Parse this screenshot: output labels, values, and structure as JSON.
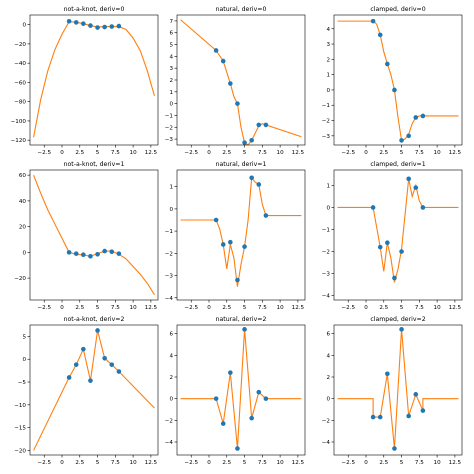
{
  "chart_data": [
    {
      "type": "line",
      "title": "not-a-knot, deriv=0",
      "xlabel": "",
      "ylabel": "",
      "xlim": [
        -4.5,
        13.5
      ],
      "ylim": [
        -125,
        10
      ],
      "xticks": [
        -2.5,
        0,
        2.5,
        5,
        7.5,
        10,
        12.5
      ],
      "yticks": [
        -120,
        -100,
        -80,
        -60,
        -40,
        -20,
        0
      ],
      "grid": false,
      "curve": {
        "x": [
          -4,
          -3,
          -2,
          -1,
          0,
          1,
          2,
          3,
          4,
          5,
          6,
          7,
          8,
          9,
          10,
          11,
          12,
          13
        ],
        "y": [
          -117,
          -78,
          -48,
          -26,
          -10,
          3,
          2.5,
          1,
          -1,
          -2.5,
          -2,
          -2,
          -2,
          -5,
          -14,
          -27,
          -48,
          -74
        ]
      },
      "points": {
        "x": [
          1,
          2,
          3,
          4,
          5,
          6,
          7,
          8
        ],
        "y": [
          3.5,
          2.3,
          1,
          -1,
          -3,
          -2.5,
          -2,
          -1.5
        ]
      },
      "colors": {
        "curve": "#ff7f0e",
        "points": "#1f77b4"
      }
    },
    {
      "type": "line",
      "title": "natural, deriv=0",
      "xlabel": "",
      "ylabel": "",
      "xlim": [
        -4.5,
        13.5
      ],
      "ylim": [
        -3.5,
        7.5
      ],
      "xticks": [
        -2.5,
        0,
        2.5,
        5,
        7.5,
        10,
        12.5
      ],
      "yticks": [
        -3,
        -2,
        -1,
        0,
        1,
        2,
        3,
        4,
        5,
        6,
        7
      ],
      "grid": false,
      "curve": {
        "x": [
          -4,
          1,
          2,
          3,
          3.5,
          4,
          4.5,
          5,
          5.5,
          6,
          6.5,
          7,
          7.5,
          8,
          13
        ],
        "y": [
          7.1,
          4.5,
          3.6,
          1.7,
          0.6,
          0,
          -2.0,
          -3.3,
          -3.5,
          -3.1,
          -2.5,
          -1.9,
          -1.7,
          -1.8,
          -2.8
        ]
      },
      "points": {
        "x": [
          1,
          2,
          3,
          4,
          5,
          6,
          7,
          8
        ],
        "y": [
          4.5,
          3.6,
          1.7,
          0,
          -3.3,
          -3.1,
          -1.8,
          -1.8
        ]
      },
      "colors": {
        "curve": "#ff7f0e",
        "points": "#1f77b4"
      }
    },
    {
      "type": "line",
      "title": "clamped, deriv=0",
      "xlabel": "",
      "ylabel": "",
      "xlim": [
        -4.5,
        13.5
      ],
      "ylim": [
        -3.6,
        4.9
      ],
      "xticks": [
        -2.5,
        0,
        2.5,
        5,
        7.5,
        10,
        12.5
      ],
      "yticks": [
        -3,
        -2,
        -1,
        0,
        1,
        2,
        3,
        4
      ],
      "grid": false,
      "curve": {
        "x": [
          -4,
          1,
          1.5,
          2,
          2.5,
          3,
          3.5,
          4,
          4.5,
          5,
          5.5,
          6,
          6.5,
          7,
          7.5,
          8,
          13
        ],
        "y": [
          4.5,
          4.5,
          4.3,
          3.6,
          2.5,
          1.7,
          1.0,
          0,
          -1.8,
          -3.3,
          -3.2,
          -2.9,
          -2.2,
          -1.8,
          -1.7,
          -1.7,
          -1.7
        ]
      },
      "points": {
        "x": [
          1,
          2,
          3,
          4,
          5,
          6,
          7,
          8
        ],
        "y": [
          4.5,
          3.6,
          1.7,
          0,
          -3.3,
          -3.0,
          -1.8,
          -1.7
        ]
      },
      "colors": {
        "curve": "#ff7f0e",
        "points": "#1f77b4"
      }
    },
    {
      "type": "line",
      "title": "not-a-knot, deriv=1",
      "xlabel": "",
      "ylabel": "",
      "xlim": [
        -4.5,
        13.5
      ],
      "ylim": [
        -37,
        64
      ],
      "xticks": [
        -2.5,
        0,
        2.5,
        5,
        7.5,
        10,
        12.5
      ],
      "yticks": [
        -20,
        0,
        20,
        40,
        60
      ],
      "grid": false,
      "curve": {
        "x": [
          -4,
          -3,
          -2,
          -1,
          0,
          1,
          2,
          3,
          4,
          5,
          6,
          7,
          8,
          9,
          10,
          11,
          12,
          13
        ],
        "y": [
          60,
          46,
          33,
          22,
          11,
          0,
          -1.5,
          -2,
          -3,
          -1,
          1,
          1,
          -1.5,
          -5,
          -11,
          -17,
          -24,
          -33
        ]
      },
      "points": {
        "x": [
          1,
          2,
          3,
          4,
          5,
          6,
          7,
          8
        ],
        "y": [
          0,
          -1,
          -1.8,
          -3,
          -1.5,
          1,
          0.5,
          -1
        ]
      },
      "colors": {
        "curve": "#ff7f0e",
        "points": "#1f77b4"
      }
    },
    {
      "type": "line",
      "title": "natural, deriv=1",
      "xlabel": "",
      "ylabel": "",
      "xlim": [
        -4.5,
        13.5
      ],
      "ylim": [
        -4.1,
        1.75
      ],
      "xticks": [
        -2.5,
        0,
        2.5,
        5,
        7.5,
        10,
        12.5
      ],
      "yticks": [
        -4,
        -3,
        -2,
        -1,
        0,
        1
      ],
      "grid": false,
      "curve": {
        "x": [
          -4,
          1,
          1.5,
          2,
          2.5,
          3,
          3.5,
          4,
          4.5,
          5,
          5.5,
          6,
          6.5,
          7,
          7.5,
          8,
          13
        ],
        "y": [
          -0.5,
          -0.5,
          -0.9,
          -1.6,
          -2.7,
          -1.6,
          -2.2,
          -3.5,
          -2.5,
          -1.7,
          -0.5,
          1.4,
          1.2,
          1.1,
          0.2,
          -0.3,
          -0.3
        ]
      },
      "points": {
        "x": [
          1,
          2,
          3,
          4,
          5,
          6,
          7,
          8
        ],
        "y": [
          -0.5,
          -1.6,
          -1.5,
          -3.2,
          -1.7,
          1.4,
          1.1,
          -0.3
        ]
      },
      "colors": {
        "curve": "#ff7f0e",
        "points": "#1f77b4"
      }
    },
    {
      "type": "line",
      "title": "clamped, deriv=1",
      "xlabel": "",
      "ylabel": "",
      "xlim": [
        -4.5,
        13.5
      ],
      "ylim": [
        -4.2,
        1.7
      ],
      "xticks": [
        -2.5,
        0,
        2.5,
        5,
        7.5,
        10,
        12.5
      ],
      "yticks": [
        -4,
        -3,
        -2,
        -1,
        0,
        1
      ],
      "grid": false,
      "curve": {
        "x": [
          -4,
          1,
          1.5,
          2,
          2.5,
          3,
          3.5,
          4,
          4.5,
          5,
          5.5,
          6,
          6.5,
          7,
          7.5,
          8,
          13
        ],
        "y": [
          0,
          0,
          -0.9,
          -1.8,
          -2.9,
          -1.6,
          -2.3,
          -3.4,
          -2.8,
          -1.9,
          -0.3,
          1.3,
          0.5,
          1.0,
          0.3,
          0,
          0
        ]
      },
      "points": {
        "x": [
          1,
          2,
          3,
          4,
          5,
          6,
          7,
          8
        ],
        "y": [
          0,
          -1.8,
          -1.6,
          -3.2,
          -2.0,
          1.3,
          0.9,
          0
        ]
      },
      "colors": {
        "curve": "#ff7f0e",
        "points": "#1f77b4"
      }
    },
    {
      "type": "line",
      "title": "not-a-knot, deriv=2",
      "xlabel": "",
      "ylabel": "",
      "xlim": [
        -4.5,
        13.5
      ],
      "ylim": [
        -21,
        7.5
      ],
      "xticks": [
        -2.5,
        0,
        2.5,
        5,
        7.5,
        10,
        12.5
      ],
      "yticks": [
        -20,
        -15,
        -10,
        -5,
        0,
        5
      ],
      "grid": false,
      "curve": {
        "x": [
          -4,
          1,
          2,
          3,
          4,
          5,
          6,
          7,
          8,
          13
        ],
        "y": [
          -20,
          -4.0,
          -1.2,
          2.2,
          -4.7,
          6.3,
          0.2,
          -1.2,
          -2.7,
          -10.7
        ]
      },
      "points": {
        "x": [
          1,
          2,
          3,
          4,
          5,
          6,
          7,
          8
        ],
        "y": [
          -4.0,
          -1.2,
          2.2,
          -4.7,
          6.3,
          0.2,
          -1.2,
          -2.7
        ]
      },
      "colors": {
        "curve": "#ff7f0e",
        "points": "#1f77b4"
      }
    },
    {
      "type": "line",
      "title": "natural, deriv=2",
      "xlabel": "",
      "ylabel": "",
      "xlim": [
        -4.5,
        13.5
      ],
      "ylim": [
        -5.2,
        6.8
      ],
      "xticks": [
        -2.5,
        0,
        2.5,
        5,
        7.5,
        10,
        12.5
      ],
      "yticks": [
        -4,
        -2,
        0,
        2,
        4,
        6
      ],
      "grid": false,
      "curve": {
        "x": [
          -4,
          1,
          2,
          3,
          4,
          5,
          6,
          7,
          8,
          13
        ],
        "y": [
          0,
          0,
          -2.3,
          2.4,
          -4.6,
          6.4,
          -1.8,
          0.6,
          0,
          0
        ]
      },
      "points": {
        "x": [
          1,
          2,
          3,
          4,
          5,
          6,
          7,
          8
        ],
        "y": [
          0,
          -2.3,
          2.4,
          -4.6,
          6.4,
          -1.8,
          0.6,
          0
        ]
      },
      "colors": {
        "curve": "#ff7f0e",
        "points": "#1f77b4"
      }
    },
    {
      "type": "line",
      "title": "clamped, deriv=2",
      "xlabel": "",
      "ylabel": "",
      "xlim": [
        -4.5,
        13.5
      ],
      "ylim": [
        -5.2,
        6.8
      ],
      "xticks": [
        -2.5,
        0,
        2.5,
        5,
        7.5,
        10,
        12.5
      ],
      "yticks": [
        -4,
        -2,
        0,
        2,
        4,
        6
      ],
      "grid": false,
      "curve": {
        "x": [
          -4,
          1,
          1,
          2,
          3,
          4,
          5,
          6,
          7,
          8,
          8,
          13
        ],
        "y": [
          0,
          0,
          -1.7,
          -1.7,
          2.3,
          -4.6,
          6.4,
          -1.6,
          0.4,
          -1.1,
          0,
          0
        ]
      },
      "points": {
        "x": [
          1,
          2,
          3,
          4,
          5,
          6,
          7,
          8
        ],
        "y": [
          -1.7,
          -1.7,
          2.3,
          -4.6,
          6.4,
          -1.6,
          0.4,
          -1.1
        ]
      },
      "colors": {
        "curve": "#ff7f0e",
        "points": "#1f77b4"
      }
    }
  ]
}
